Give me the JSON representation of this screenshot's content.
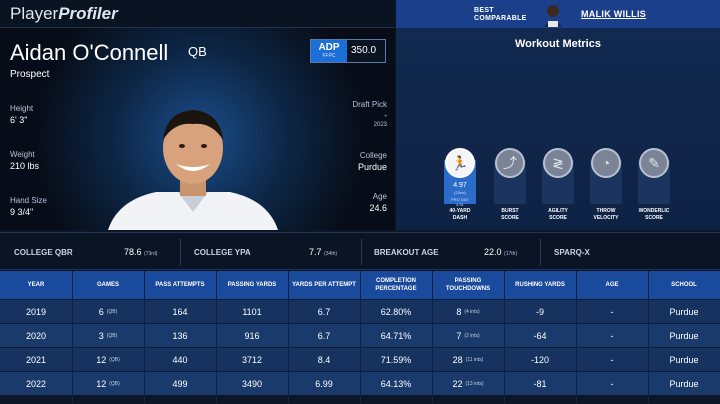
{
  "brand": {
    "part1": "Player",
    "part2": "Profiler"
  },
  "comparable": {
    "label_line1": "BEST",
    "label_line2": "COMPARABLE",
    "name": "MALIK WILLIS"
  },
  "player": {
    "name": "Aidan O'Connell",
    "position": "QB",
    "status": "Prospect",
    "adp": {
      "label": "ADP",
      "sublabel": "FFPC",
      "value": "350.0"
    },
    "height_label": "Height",
    "height": "6' 3\"",
    "weight_label": "Weight",
    "weight": "210 lbs",
    "hand_label": "Hand Size",
    "hand": "9 3/4\"",
    "draft_label": "Draft Pick",
    "draft_value": "-",
    "draft_year": "2023",
    "college_label": "College",
    "college": "Purdue",
    "age_label": "Age",
    "age": "24.6"
  },
  "workout": {
    "title": "Workout Metrics",
    "metrics": [
      {
        "label1": "40-YARD",
        "label2": "DASH",
        "value": "4.97",
        "sub": "(22nd)",
        "extra": "PRO DAY\n4.91",
        "icon": "sprinter-icon",
        "active": true
      },
      {
        "label1": "BURST",
        "label2": "SCORE",
        "icon": "jumper-icon",
        "active": false
      },
      {
        "label1": "AGILITY",
        "label2": "SCORE",
        "icon": "agility-icon",
        "active": false
      },
      {
        "label1": "THROW",
        "label2": "VELOCITY",
        "icon": "gauge-icon",
        "active": false
      },
      {
        "label1": "WONDERLIC",
        "label2": "SCORE",
        "icon": "brain-icon",
        "active": false
      }
    ]
  },
  "strip": [
    {
      "key": "COLLEGE QBR",
      "value": "78.6",
      "rank": "(73rd)"
    },
    {
      "key": "COLLEGE YPA",
      "value": "7.7",
      "rank": "(34th)"
    },
    {
      "key": "BREAKOUT AGE",
      "value": "22.0",
      "rank": "(17th)"
    },
    {
      "key": "SPARQ-X",
      "value": "",
      "rank": ""
    }
  ],
  "table": {
    "headers": [
      "YEAR",
      "GAMES",
      "PASS ATTEMPTS",
      "PASSING YARDS",
      "YARDS PER ATTEMPT",
      "COMPLETION PERCENTAGE",
      "PASSING TOUCHDOWNS",
      "RUSHING YARDS",
      "AGE",
      "SCHOOL"
    ],
    "rows": [
      {
        "year": "2019",
        "games": "6",
        "games_note": "(QB)",
        "att": "164",
        "yds": "1101",
        "ypa": "6.7",
        "pct": "62.80%",
        "td": "8",
        "td_note": "(4 ints)",
        "rush": "-9",
        "age": "-",
        "school": "Purdue"
      },
      {
        "year": "2020",
        "games": "3",
        "games_note": "(QB)",
        "att": "136",
        "yds": "916",
        "ypa": "6.7",
        "pct": "64.71%",
        "td": "7",
        "td_note": "(2 ints)",
        "rush": "-64",
        "age": "-",
        "school": "Purdue"
      },
      {
        "year": "2021",
        "games": "12",
        "games_note": "(QB)",
        "att": "440",
        "yds": "3712",
        "ypa": "8.4",
        "pct": "71.59%",
        "td": "28",
        "td_note": "(11 ints)",
        "rush": "-120",
        "age": "-",
        "school": "Purdue"
      },
      {
        "year": "2022",
        "games": "12",
        "games_note": "(QB)",
        "att": "499",
        "yds": "3490",
        "ypa": "6.99",
        "pct": "64.13%",
        "td": "22",
        "td_note": "(13 ints)",
        "rush": "-81",
        "age": "-",
        "school": "Purdue"
      }
    ]
  }
}
